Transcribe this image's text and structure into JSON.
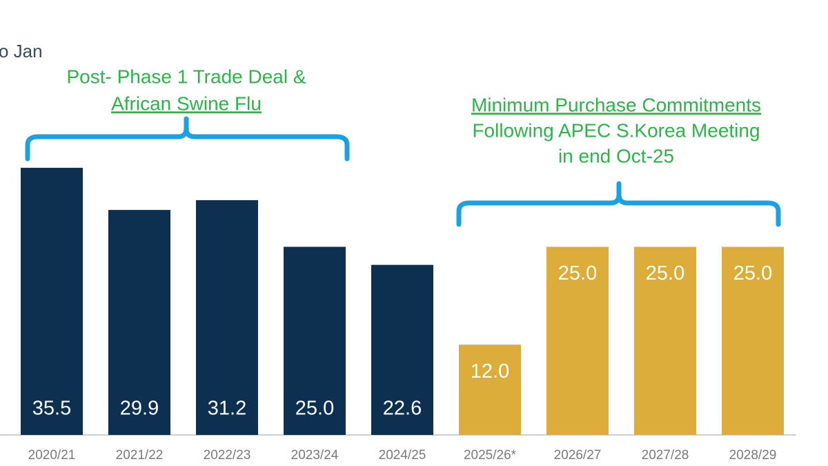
{
  "chart_data": {
    "type": "bar",
    "subtitle": "o Jan",
    "categories": [
      "2020/21",
      "2021/22",
      "2022/23",
      "2023/24",
      "2024/25",
      "2025/26*",
      "2026/27",
      "2027/28",
      "2028/29"
    ],
    "values": [
      35.5,
      29.9,
      31.2,
      25.0,
      22.6,
      12.0,
      25.0,
      25.0,
      25.0
    ],
    "value_labels": [
      "35.5",
      "29.9",
      "31.2",
      "25.0",
      "22.6",
      "12.0",
      "25.0",
      "25.0",
      "25.0"
    ],
    "colors": [
      "#0d3050",
      "#0d3050",
      "#0d3050",
      "#0d3050",
      "#0d3050",
      "#dcad3a",
      "#dcad3a",
      "#dcad3a",
      "#dcad3a"
    ],
    "ylim": [
      0,
      40
    ],
    "annotations": [
      [
        "Post- Phase 1 Trade Deal &",
        "African Swine Flu"
      ],
      [
        "Minimum Purchase Commitments",
        "Following APEC S.Korea Meeting",
        "in end Oct-25"
      ]
    ]
  }
}
